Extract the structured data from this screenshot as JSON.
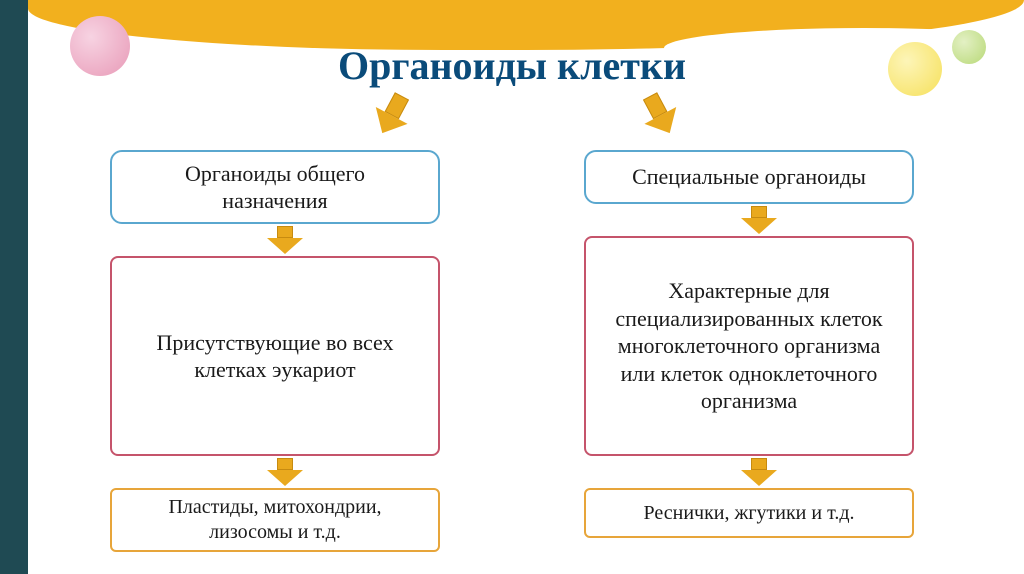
{
  "title": {
    "text": "Органоиды клетки",
    "color": "#0a4b7a",
    "fontsize": 40
  },
  "colors": {
    "sidebar": "#1f4a53",
    "wave": "#f2b01e",
    "arrow_fill": "#e9a91e",
    "arrow_border": "#c78b10",
    "blue_border": "#5aa7cf",
    "red_border": "#c5546b",
    "orange_border": "#e7a53a",
    "text": "#1a1a1a",
    "circle_pink": "#e89ab7",
    "circle_yellow": "#f6e05a",
    "circle_green": "#b8d977"
  },
  "left": {
    "level1": "Органоиды общего назначения",
    "level2": "Присутствующие во всех клетках эукариот",
    "level3": "Пластиды, митохондрии, лизосомы и т.д."
  },
  "right": {
    "level1": "Специальные органоиды",
    "level2": "Характерные для специализированных клеток многоклеточного организма или клеток одноклеточного организма",
    "level3": "Реснички, жгутики и т.д."
  },
  "layout": {
    "box_font_size": 22,
    "level3_font_size": 20,
    "arrow_stem_height": 22,
    "arrow_head_height": 20,
    "small_arrow_stem": 12,
    "small_arrow_head": 16
  }
}
